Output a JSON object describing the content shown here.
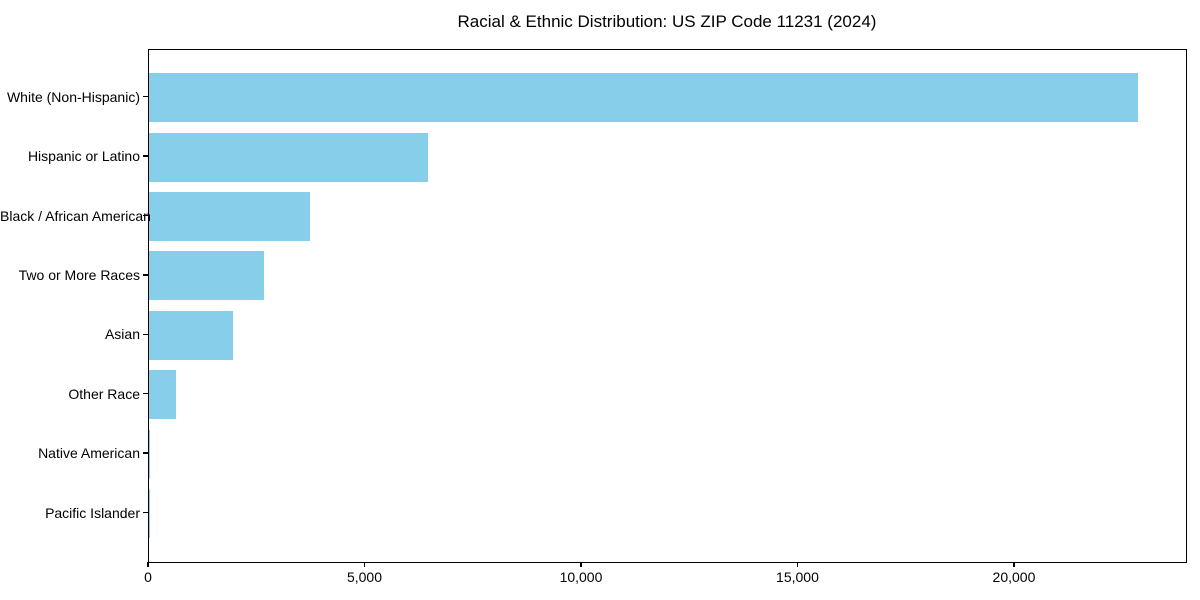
{
  "chart_data": {
    "type": "bar",
    "orientation": "horizontal",
    "title": "Racial & Ethnic Distribution: US ZIP Code 11231 (2024)",
    "categories": [
      "White (Non-Hispanic)",
      "Hispanic or Latino",
      "Black / African American",
      "Two or More Races",
      "Asian",
      "Other Race",
      "Native American",
      "Pacific Islander"
    ],
    "values": [
      22830,
      6450,
      3720,
      2655,
      1950,
      620,
      25,
      10
    ],
    "xlabel": "",
    "ylabel": "",
    "xlim": [
      0,
      23950
    ],
    "x_ticks": [
      0,
      5000,
      10000,
      15000,
      20000
    ],
    "x_tick_labels": [
      "0",
      "5,000",
      "10,000",
      "15,000",
      "20,000"
    ],
    "bar_color": "#87CEEB",
    "text_color": "#000000",
    "background": "#FFFFFF",
    "grid": false,
    "legend": false
  }
}
